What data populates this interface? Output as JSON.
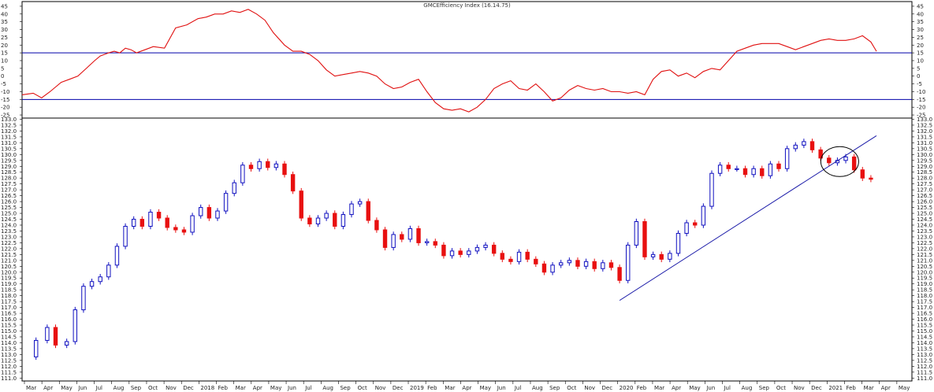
{
  "chart_data": [
    {
      "type": "line",
      "panel": "indicator",
      "title": "GMCEfficiency Index (16.14.75)",
      "ylim": [
        -27,
        48
      ],
      "yticks": [
        45,
        40,
        35,
        30,
        25,
        20,
        15,
        10,
        5,
        0,
        -5,
        -10,
        -15,
        -20,
        -25
      ],
      "reference_lines": [
        15,
        -15
      ],
      "colors": {
        "line": "#e01010",
        "reference": "#0000aa"
      },
      "series": [
        {
          "x": [
            0,
            4,
            7,
            10,
            14,
            17,
            20,
            23,
            26,
            28,
            31,
            33,
            35,
            37,
            39,
            41,
            44,
            47,
            51,
            55,
            59,
            63,
            66,
            69,
            72,
            75,
            78,
            81,
            84,
            87,
            90,
            94,
            97,
            100,
            103,
            106,
            109,
            112,
            115,
            118,
            121,
            124,
            127,
            130,
            133,
            136,
            139,
            142,
            145,
            148,
            151,
            154,
            157,
            160,
            163,
            166,
            169,
            172,
            175,
            178,
            181,
            184,
            187,
            190,
            193,
            196,
            199,
            202,
            205,
            208,
            211,
            214,
            217,
            220,
            223,
            226,
            229,
            232,
            235,
            238,
            241,
            244,
            247,
            250,
            253,
            256,
            259,
            262,
            265,
            268,
            271,
            274,
            277,
            280,
            283,
            286,
            289,
            292,
            295,
            298,
            301,
            304,
            306
          ],
          "values": [
            -12,
            -11,
            -14,
            -10,
            -4,
            -2,
            0,
            5,
            10,
            13,
            15,
            16,
            15,
            18,
            17,
            15,
            17,
            19,
            18,
            31,
            33,
            37,
            38,
            40,
            40,
            42,
            41,
            43,
            40,
            36,
            28,
            20,
            16,
            16,
            14,
            10,
            4,
            0,
            1,
            2,
            3,
            2,
            0,
            -5,
            -8,
            -7,
            -4,
            -2,
            -10,
            -17,
            -21,
            -22,
            -21,
            -23,
            -20,
            -15,
            -8,
            -5,
            -3,
            -8,
            -9,
            -5,
            -10,
            -16,
            -14,
            -9,
            -6,
            -8,
            -9,
            -8,
            -10,
            -10,
            -11,
            -10,
            -12,
            -2,
            3,
            4,
            0,
            2,
            -1,
            3,
            5,
            4,
            10,
            16,
            18,
            20,
            21,
            21,
            21,
            19,
            17,
            19,
            21,
            23,
            24,
            23,
            23,
            24,
            26,
            22,
            16
          ]
        }
      ]
    },
    {
      "type": "candlestick",
      "panel": "price",
      "ylim": [
        110.75,
        133.1
      ],
      "yticks": [
        "133.0",
        "132.5",
        "132.0",
        "131.5",
        "131.0",
        "130.5",
        "130.0",
        "129.5",
        "129.0",
        "128.5",
        "128.0",
        "127.5",
        "127.0",
        "126.5",
        "126.0",
        "125.5",
        "125.0",
        "124.5",
        "124.0",
        "123.5",
        "123.0",
        "122.5",
        "122.0",
        "121.5",
        "121.0",
        "120.5",
        "120.0",
        "119.5",
        "119.0",
        "118.5",
        "118.0",
        "117.5",
        "117.0",
        "116.5",
        "116.0",
        "115.5",
        "115.0",
        "114.5",
        "114.0",
        "113.5",
        "113.0",
        "112.5",
        "112.0",
        "111.5",
        "111.0"
      ],
      "x_labels": [
        "Mar",
        "Apr",
        "May",
        "Jun",
        "Jul",
        "Aug",
        "Sep",
        "Oct",
        "Nov",
        "Dec",
        "2018",
        "Feb",
        "Mar",
        "Apr",
        "May",
        "Jun",
        "Jul",
        "Aug",
        "Sep",
        "Oct",
        "Nov",
        "Dec",
        "2019",
        "Feb",
        "Mar",
        "Apr",
        "May",
        "Jun",
        "Jul",
        "Aug",
        "Sep",
        "Oct",
        "Nov",
        "Dec",
        "2020",
        "Feb",
        "Mar",
        "Apr",
        "May",
        "Jun",
        "Jul",
        "Aug",
        "Sep",
        "Oct",
        "Nov",
        "Dec",
        "2021",
        "Feb",
        "Mar",
        "Apr",
        "May"
      ],
      "colors": {
        "up": "#1010c0",
        "down": "#e81010",
        "trendline": "#1a1aa8",
        "circle": "#000000"
      },
      "ohlc_closes": [
        {
          "x": 0,
          "v": 112.8
        },
        {
          "x": 5,
          "v": 114.2
        },
        {
          "x": 9,
          "v": 115.3
        },
        {
          "x": 12,
          "v": 113.8
        },
        {
          "x": 16,
          "v": 114.1
        },
        {
          "x": 19,
          "v": 116.8
        },
        {
          "x": 22,
          "v": 118.8
        },
        {
          "x": 25,
          "v": 119.2
        },
        {
          "x": 28,
          "v": 119.6
        },
        {
          "x": 31,
          "v": 120.6
        },
        {
          "x": 34,
          "v": 122.2
        },
        {
          "x": 37,
          "v": 123.9
        },
        {
          "x": 40,
          "v": 124.5
        },
        {
          "x": 43,
          "v": 123.9
        },
        {
          "x": 46,
          "v": 125.1
        },
        {
          "x": 49,
          "v": 124.6
        },
        {
          "x": 52,
          "v": 123.8
        },
        {
          "x": 55,
          "v": 123.6
        },
        {
          "x": 58,
          "v": 123.4
        },
        {
          "x": 61,
          "v": 124.8
        },
        {
          "x": 64,
          "v": 125.5
        },
        {
          "x": 67,
          "v": 124.6
        },
        {
          "x": 70,
          "v": 125.2
        },
        {
          "x": 73,
          "v": 126.7
        },
        {
          "x": 76,
          "v": 127.6
        },
        {
          "x": 79,
          "v": 129.1
        },
        {
          "x": 82,
          "v": 128.8
        },
        {
          "x": 85,
          "v": 129.4
        },
        {
          "x": 88,
          "v": 128.9
        },
        {
          "x": 91,
          "v": 129.2
        },
        {
          "x": 94,
          "v": 128.3
        },
        {
          "x": 97,
          "v": 126.9
        },
        {
          "x": 100,
          "v": 124.6
        },
        {
          "x": 103,
          "v": 124.1
        },
        {
          "x": 106,
          "v": 124.6
        },
        {
          "x": 109,
          "v": 125.0
        },
        {
          "x": 112,
          "v": 123.9
        },
        {
          "x": 115,
          "v": 124.9
        },
        {
          "x": 118,
          "v": 125.8
        },
        {
          "x": 121,
          "v": 126.0
        },
        {
          "x": 124,
          "v": 124.4
        },
        {
          "x": 127,
          "v": 123.6
        },
        {
          "x": 130,
          "v": 122.1
        },
        {
          "x": 133,
          "v": 123.2
        },
        {
          "x": 136,
          "v": 122.8
        },
        {
          "x": 139,
          "v": 123.7
        },
        {
          "x": 142,
          "v": 122.5
        },
        {
          "x": 145,
          "v": 122.6
        },
        {
          "x": 148,
          "v": 122.3
        },
        {
          "x": 151,
          "v": 121.4
        },
        {
          "x": 154,
          "v": 121.8
        },
        {
          "x": 157,
          "v": 121.5
        },
        {
          "x": 160,
          "v": 121.8
        },
        {
          "x": 163,
          "v": 122.1
        },
        {
          "x": 166,
          "v": 122.3
        },
        {
          "x": 169,
          "v": 121.6
        },
        {
          "x": 172,
          "v": 121.1
        },
        {
          "x": 175,
          "v": 120.9
        },
        {
          "x": 178,
          "v": 121.7
        },
        {
          "x": 181,
          "v": 121.1
        },
        {
          "x": 184,
          "v": 120.7
        },
        {
          "x": 187,
          "v": 120.0
        },
        {
          "x": 190,
          "v": 120.6
        },
        {
          "x": 193,
          "v": 120.8
        },
        {
          "x": 196,
          "v": 121.0
        },
        {
          "x": 199,
          "v": 120.5
        },
        {
          "x": 202,
          "v": 120.9
        },
        {
          "x": 205,
          "v": 120.3
        },
        {
          "x": 208,
          "v": 120.8
        },
        {
          "x": 211,
          "v": 120.4
        },
        {
          "x": 214,
          "v": 119.3
        },
        {
          "x": 217,
          "v": 122.3
        },
        {
          "x": 220,
          "v": 124.3
        },
        {
          "x": 223,
          "v": 121.3
        },
        {
          "x": 226,
          "v": 121.5
        },
        {
          "x": 229,
          "v": 121.1
        },
        {
          "x": 232,
          "v": 121.6
        },
        {
          "x": 235,
          "v": 123.3
        },
        {
          "x": 238,
          "v": 124.2
        },
        {
          "x": 241,
          "v": 124.0
        },
        {
          "x": 244,
          "v": 125.6
        },
        {
          "x": 247,
          "v": 128.4
        },
        {
          "x": 250,
          "v": 129.1
        },
        {
          "x": 253,
          "v": 128.8
        },
        {
          "x": 256,
          "v": 128.8
        },
        {
          "x": 259,
          "v": 128.3
        },
        {
          "x": 262,
          "v": 128.8
        },
        {
          "x": 265,
          "v": 128.2
        },
        {
          "x": 268,
          "v": 129.2
        },
        {
          "x": 271,
          "v": 128.8
        },
        {
          "x": 274,
          "v": 130.5
        },
        {
          "x": 277,
          "v": 130.8
        },
        {
          "x": 280,
          "v": 131.1
        },
        {
          "x": 283,
          "v": 130.4
        },
        {
          "x": 286,
          "v": 129.7
        },
        {
          "x": 289,
          "v": 129.3
        },
        {
          "x": 292,
          "v": 129.5
        },
        {
          "x": 295,
          "v": 129.8
        },
        {
          "x": 298,
          "v": 128.7
        },
        {
          "x": 301,
          "v": 128.0
        },
        {
          "x": 304,
          "v": 127.9
        }
      ],
      "trendline": {
        "x1": 214,
        "y1": 117.6,
        "x2": 306,
        "y2": 131.6
      },
      "circle_marker": {
        "x": 292,
        "y": 129.4
      }
    }
  ]
}
